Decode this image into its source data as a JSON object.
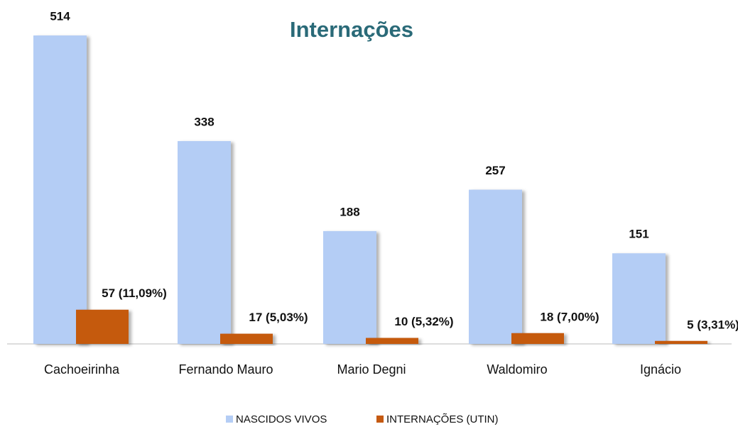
{
  "chart_data": {
    "type": "bar",
    "title": "Internações",
    "categories": [
      "Cachoeirinha",
      "Fernando Mauro",
      "Mario Degni",
      "Waldomiro",
      "Ignácio"
    ],
    "series": [
      {
        "name": "NASCIDOS VIVOS",
        "color": "#b4cdf5",
        "values": [
          514,
          338,
          188,
          257,
          151
        ]
      },
      {
        "name": "INTERNAÇÕES (UTIN)",
        "color": "#c55a11",
        "values": [
          57,
          17,
          10,
          18,
          5
        ],
        "value_labels": [
          "57 (11,09%)",
          "17 (5,03%)",
          "10 (5,32%)",
          "18 (7,00%)",
          "5 (3,31%)"
        ]
      }
    ],
    "legend": "bottom"
  }
}
